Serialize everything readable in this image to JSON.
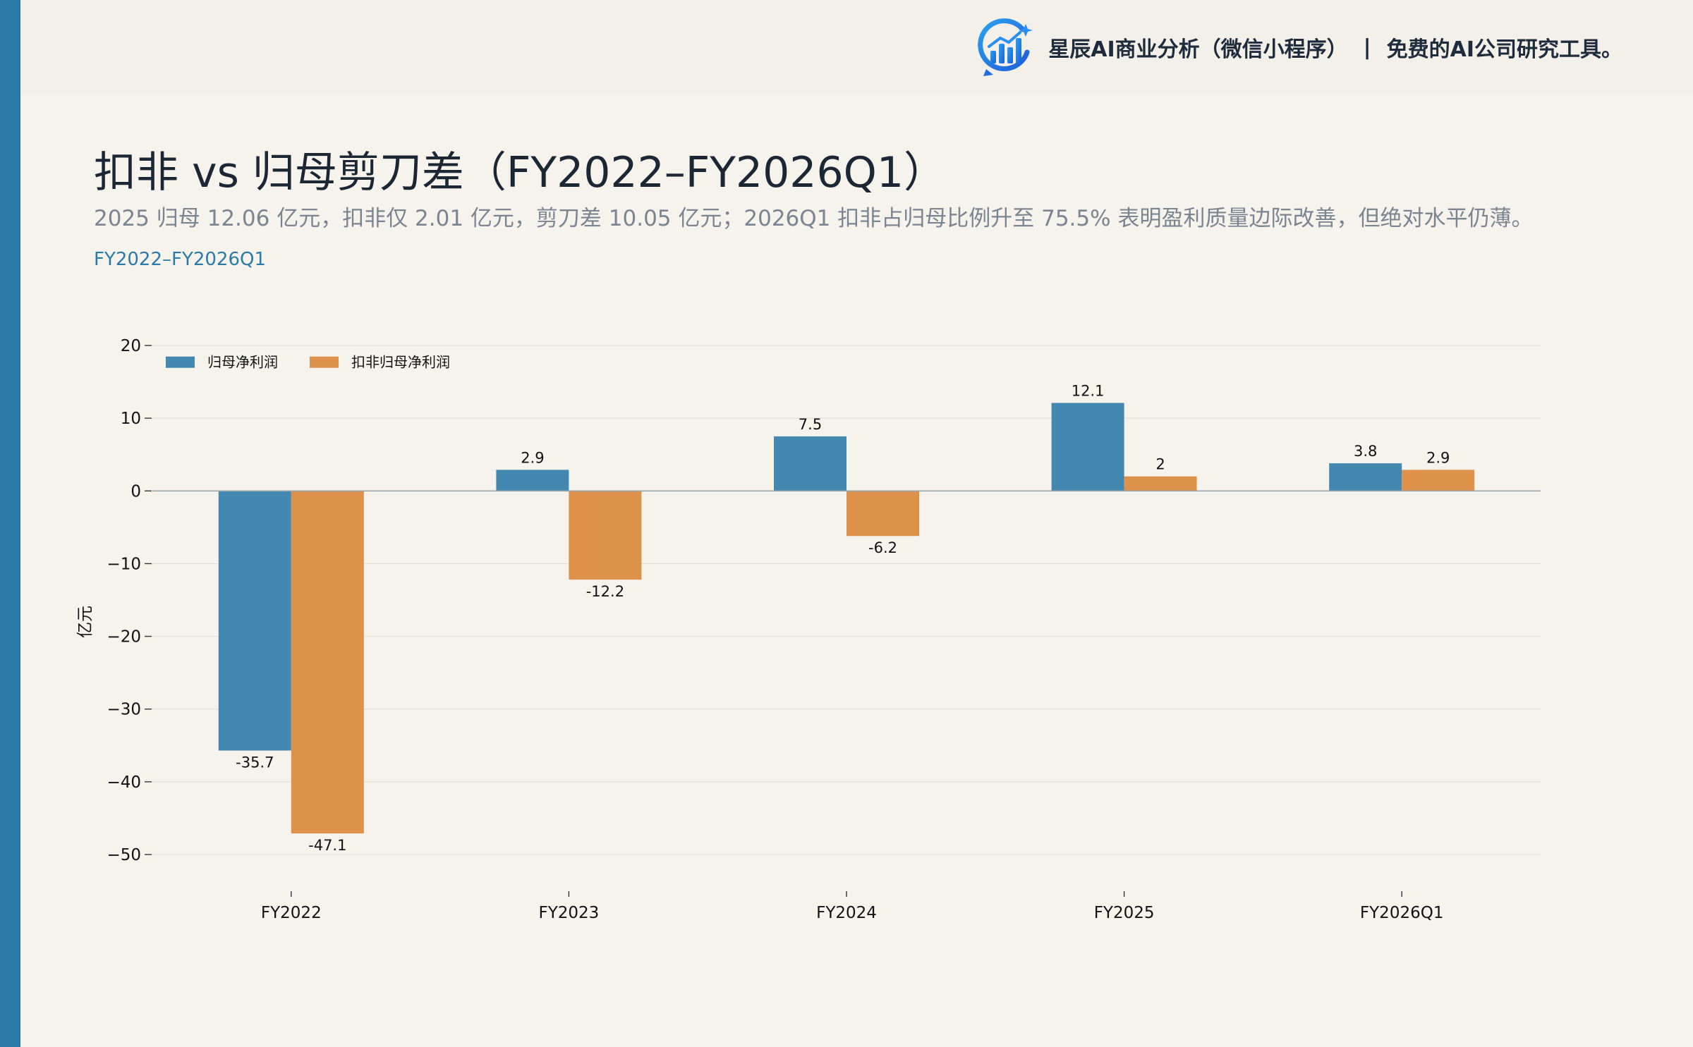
{
  "header": {
    "brand_name": "星辰AI商业分析（微信小程序）",
    "separator": "|",
    "tagline": "免费的AI公司研究工具。",
    "logo_icon": "bar-chart-logo-icon"
  },
  "title": "扣非 vs 归母剪刀差（FY2022–FY2026Q1）",
  "subtitle": "2025 归母 12.06 亿元，扣非仅 2.01 亿元，剪刀差 10.05 亿元；2026Q1 扣非占归母比例升至 75.5% 表明盈利质量边际改善，但绝对水平仍薄。",
  "period": "FY2022–FY2026Q1",
  "colors": {
    "accent": "#2a7aa8",
    "series1": "#4288b0",
    "series2": "#de914a"
  },
  "chart_data": {
    "type": "bar",
    "categories": [
      "FY2022",
      "FY2023",
      "FY2024",
      "FY2025",
      "FY2026Q1"
    ],
    "series": [
      {
        "name": "归母净利润",
        "values": [
          -35.7,
          2.9,
          7.5,
          12.1,
          3.8
        ],
        "labels": [
          "-35.7",
          "2.9",
          "7.5",
          "12.1",
          "3.8"
        ],
        "color": "#4288b0"
      },
      {
        "name": "扣非归母净利润",
        "values": [
          -47.1,
          -12.2,
          -6.2,
          2.0,
          2.9
        ],
        "labels": [
          "-47.1",
          "-12.2",
          "-6.2",
          "2",
          "2.9"
        ],
        "color": "#de914a"
      }
    ],
    "ylabel": "亿元",
    "xlabel": "",
    "ylim": [
      -50,
      20
    ],
    "yticks": [
      20,
      10,
      0,
      -10,
      -20,
      -30,
      -40,
      -50
    ],
    "ytick_labels": [
      "20",
      "10",
      "0",
      "−10",
      "−20",
      "−30",
      "−40",
      "−50"
    ],
    "grid": true,
    "legend": "top-left"
  }
}
